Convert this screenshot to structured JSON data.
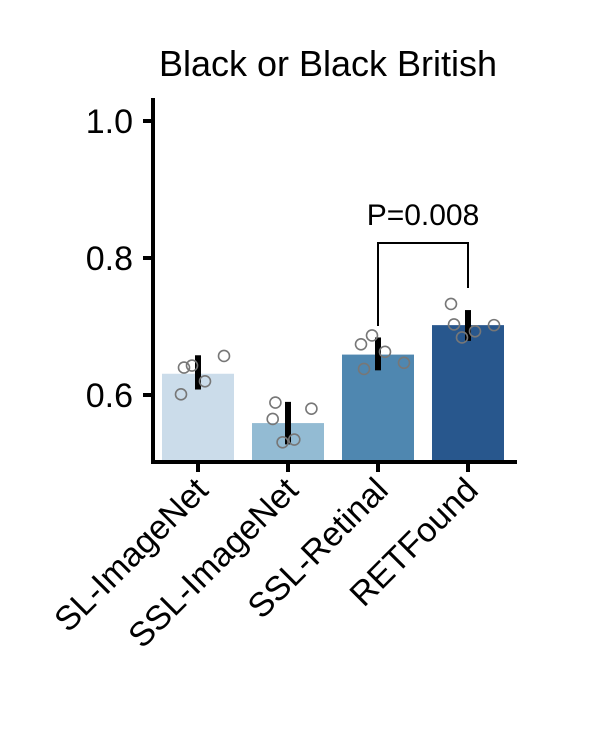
{
  "chart_data": {
    "type": "bar",
    "title": "Black or Black British",
    "xlabel": "",
    "ylabel": "",
    "ylim": [
      0.5,
      1.03
    ],
    "yticks": [
      0.6,
      0.8,
      1.0
    ],
    "ytick_labels": [
      "0.6",
      "0.8",
      "1.0"
    ],
    "categories": [
      "SL-ImageNet",
      "SSL-ImageNet",
      "SSL-Retinal",
      "RETFound"
    ],
    "values": [
      0.631,
      0.559,
      0.659,
      0.702
    ],
    "error_low": [
      0.608,
      0.528,
      0.636,
      0.679
    ],
    "error_high": [
      0.658,
      0.59,
      0.684,
      0.724
    ],
    "points": [
      [
        0.64,
        0.601,
        0.643,
        0.62,
        0.657
      ],
      [
        0.589,
        0.565,
        0.531,
        0.535,
        0.58
      ],
      [
        0.638,
        0.674,
        0.687,
        0.663,
        0.647
      ],
      [
        0.703,
        0.733,
        0.684,
        0.693,
        0.702
      ]
    ],
    "colors": [
      "#cbdcea",
      "#93bbd3",
      "#4f87b0",
      "#28578d"
    ],
    "annotation": {
      "text": "P=0.008",
      "between": [
        "SSL-Retinal",
        "RETFound"
      ]
    },
    "grid": false,
    "legend": "none"
  }
}
